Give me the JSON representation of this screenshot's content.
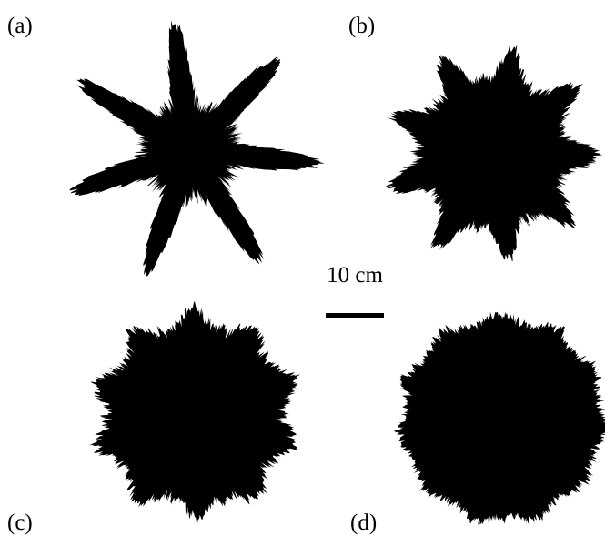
{
  "panels": [
    {
      "label": "(a)"
    },
    {
      "label": "(b)"
    },
    {
      "label": "(c)"
    },
    {
      "label": "(d)"
    }
  ],
  "scale_bar": {
    "label": "10 cm"
  }
}
